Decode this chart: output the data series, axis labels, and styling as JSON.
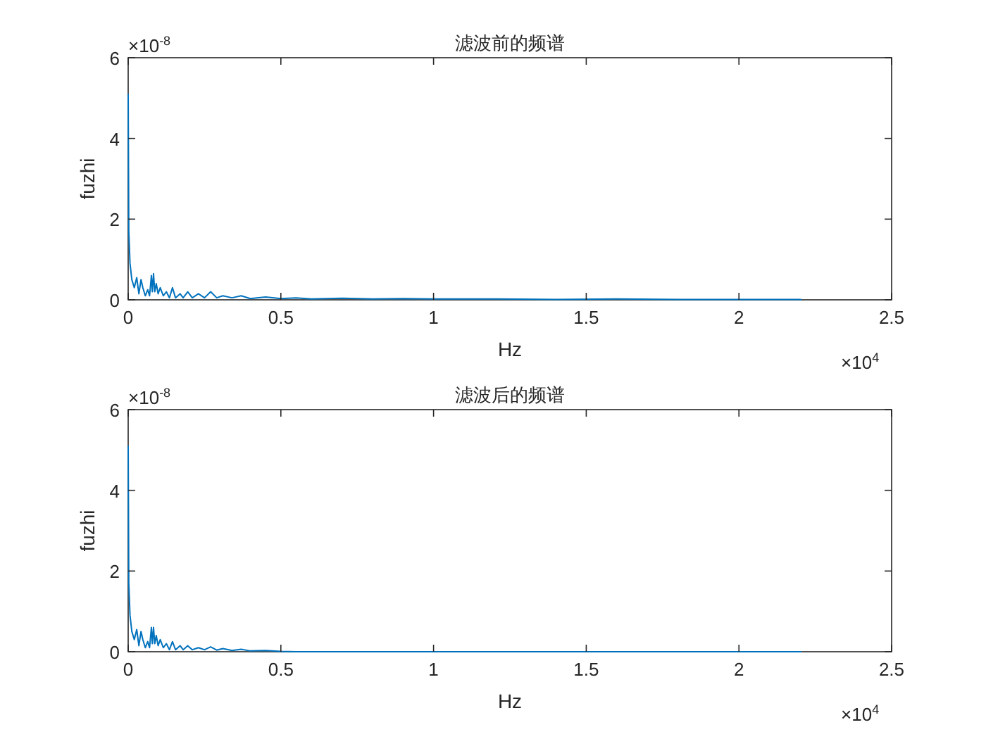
{
  "chart_data": [
    {
      "type": "line",
      "title": "滤波前的频谱",
      "xlabel": "Hz",
      "ylabel": "fuzhi",
      "annotations": [
        "×10$^{-8}$",
        "×10$^{4}$"
      ],
      "xlim": [
        0,
        2.5
      ],
      "ylim": [
        0,
        6
      ],
      "xticks": [
        0,
        0.5,
        1,
        1.5,
        2,
        2.5
      ],
      "yticks": [
        0,
        2,
        4,
        6
      ],
      "series": [
        {
          "color": "#0072bd",
          "x": [
            0,
            0.002,
            0.006,
            0.012,
            0.02,
            0.028,
            0.035,
            0.042,
            0.048,
            0.056,
            0.064,
            0.07,
            0.076,
            0.079,
            0.083,
            0.087,
            0.092,
            0.098,
            0.105,
            0.115,
            0.125,
            0.135,
            0.145,
            0.155,
            0.17,
            0.18,
            0.195,
            0.21,
            0.23,
            0.25,
            0.27,
            0.29,
            0.31,
            0.34,
            0.37,
            0.4,
            0.45,
            0.5,
            0.55,
            0.6,
            0.7,
            0.8,
            0.9,
            1,
            1.2,
            1.4,
            1.6,
            1.8,
            2,
            2.2,
            2.205
          ],
          "values": [
            5.1,
            1.7,
            0.9,
            0.5,
            0.3,
            0.55,
            0.15,
            0.5,
            0.3,
            0.1,
            0.25,
            0.1,
            0.6,
            0.2,
            0.65,
            0.2,
            0.4,
            0.15,
            0.3,
            0.1,
            0.2,
            0.05,
            0.3,
            0.05,
            0.15,
            0.05,
            0.2,
            0.05,
            0.15,
            0.05,
            0.2,
            0.05,
            0.1,
            0.05,
            0.1,
            0.03,
            0.07,
            0.03,
            0.05,
            0.02,
            0.04,
            0.02,
            0.03,
            0.02,
            0.02,
            0.01,
            0.02,
            0.01,
            0.01,
            0.01,
            0
          ]
        }
      ]
    },
    {
      "type": "line",
      "title": "滤波后的频谱",
      "xlabel": "Hz",
      "ylabel": "fuzhi",
      "annotations": [
        "×10$^{-8}$",
        "×10$^{4}$"
      ],
      "xlim": [
        0,
        2.5
      ],
      "ylim": [
        0,
        6
      ],
      "xticks": [
        0,
        0.5,
        1,
        1.5,
        2,
        2.5
      ],
      "yticks": [
        0,
        2,
        4,
        6
      ],
      "series": [
        {
          "color": "#0072bd",
          "x": [
            0,
            0.002,
            0.006,
            0.012,
            0.02,
            0.028,
            0.035,
            0.042,
            0.048,
            0.056,
            0.064,
            0.07,
            0.076,
            0.079,
            0.083,
            0.087,
            0.092,
            0.098,
            0.105,
            0.115,
            0.125,
            0.135,
            0.145,
            0.155,
            0.17,
            0.18,
            0.195,
            0.21,
            0.23,
            0.25,
            0.27,
            0.29,
            0.31,
            0.34,
            0.37,
            0.4,
            0.45,
            0.5,
            0.55,
            0.6,
            0.8,
            1.2,
            1.6,
            2,
            2.205
          ],
          "values": [
            5.1,
            1.7,
            0.9,
            0.5,
            0.3,
            0.55,
            0.15,
            0.5,
            0.3,
            0.1,
            0.25,
            0.1,
            0.6,
            0.2,
            0.6,
            0.2,
            0.4,
            0.15,
            0.3,
            0.1,
            0.2,
            0.05,
            0.25,
            0.05,
            0.15,
            0.05,
            0.15,
            0.05,
            0.1,
            0.05,
            0.12,
            0.04,
            0.08,
            0.03,
            0.06,
            0.02,
            0.03,
            0.01,
            0,
            0,
            0,
            0,
            0,
            0,
            0
          ]
        }
      ]
    }
  ]
}
